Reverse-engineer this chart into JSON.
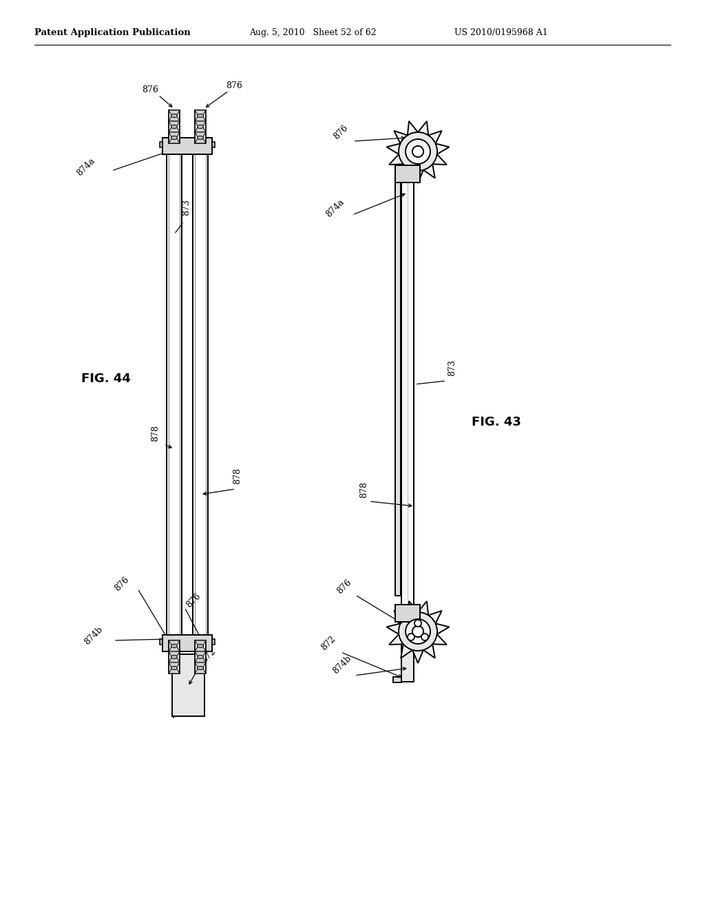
{
  "bg_color": "#ffffff",
  "line_color": "#000000",
  "header_left": "Patent Application Publication",
  "header_mid": "Aug. 5, 2010   Sheet 52 of 62",
  "header_right": "US 2010/0195968 A1",
  "fig43_label": "FIG. 43",
  "fig44_label": "FIG. 44"
}
